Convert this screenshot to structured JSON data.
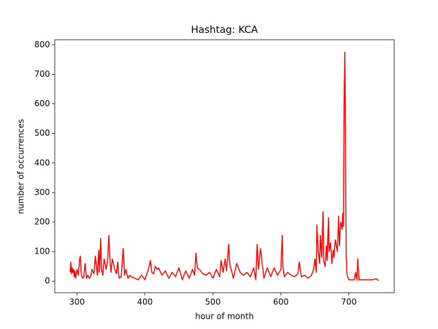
{
  "chart_data": {
    "type": "line",
    "title": "Hashtag: KCA",
    "x_label": "hour of month",
    "y_label": "number of occurrences",
    "x": [
      290,
      291,
      292,
      293,
      294,
      295,
      296,
      297,
      298,
      300,
      302,
      304,
      305,
      306,
      308,
      310,
      312,
      314,
      316,
      318,
      320,
      322,
      325,
      327,
      330,
      332,
      333,
      335,
      336,
      338,
      340,
      343,
      345,
      347,
      348,
      350,
      352,
      355,
      358,
      360,
      362,
      365,
      368,
      370,
      372,
      375,
      378,
      380,
      385,
      390,
      395,
      400,
      405,
      408,
      410,
      413,
      415,
      418,
      420,
      425,
      430,
      435,
      440,
      445,
      450,
      455,
      460,
      465,
      470,
      473,
      475,
      477,
      480,
      485,
      490,
      495,
      500,
      505,
      510,
      512,
      515,
      518,
      520,
      522,
      523,
      525,
      528,
      530,
      535,
      540,
      545,
      550,
      555,
      560,
      563,
      565,
      567,
      570,
      575,
      580,
      585,
      590,
      595,
      600,
      602,
      603,
      605,
      610,
      615,
      620,
      625,
      627,
      630,
      635,
      640,
      645,
      648,
      650,
      652,
      653,
      655,
      657,
      658,
      660,
      662,
      663,
      665,
      667,
      668,
      670,
      671,
      673,
      675,
      677,
      678,
      680,
      683,
      685,
      686,
      688,
      690,
      691,
      692,
      693,
      694,
      695,
      696,
      697,
      698,
      699,
      700,
      702,
      705,
      708,
      710,
      712,
      713,
      715,
      720,
      725,
      730,
      735,
      740,
      744
    ],
    "series": [
      {
        "color": "red",
        "values": [
          30,
          65,
          25,
          45,
          30,
          40,
          15,
          35,
          10,
          40,
          20,
          75,
          85,
          30,
          10,
          15,
          60,
          10,
          20,
          10,
          15,
          40,
          25,
          85,
          20,
          105,
          30,
          145,
          40,
          20,
          75,
          40,
          70,
          155,
          90,
          30,
          75,
          45,
          25,
          65,
          10,
          15,
          110,
          20,
          40,
          10,
          20,
          15,
          10,
          5,
          20,
          5,
          40,
          70,
          30,
          25,
          50,
          40,
          45,
          20,
          35,
          10,
          30,
          15,
          45,
          5,
          35,
          10,
          40,
          20,
          95,
          45,
          40,
          25,
          20,
          30,
          10,
          40,
          15,
          70,
          30,
          75,
          35,
          90,
          125,
          55,
          30,
          10,
          60,
          30,
          20,
          30,
          15,
          45,
          5,
          125,
          40,
          110,
          10,
          45,
          15,
          45,
          20,
          40,
          155,
          50,
          15,
          30,
          20,
          15,
          25,
          65,
          15,
          20,
          10,
          20,
          40,
          75,
          30,
          190,
          100,
          60,
          155,
          80,
          235,
          70,
          50,
          120,
          70,
          215,
          100,
          130,
          60,
          105,
          80,
          140,
          100,
          220,
          120,
          200,
          175,
          230,
          185,
          600,
          775,
          500,
          100,
          30,
          15,
          10,
          5,
          5,
          5,
          5,
          30,
          3,
          75,
          5,
          5,
          5,
          5,
          5,
          8,
          2
        ]
      }
    ],
    "xlim": [
      267.3,
      766.7
    ],
    "ylim": [
      -38.9,
      816.9
    ],
    "xticks": [
      300,
      400,
      500,
      600,
      700
    ],
    "yticks": [
      0,
      100,
      200,
      300,
      400,
      500,
      600,
      700,
      800
    ]
  }
}
